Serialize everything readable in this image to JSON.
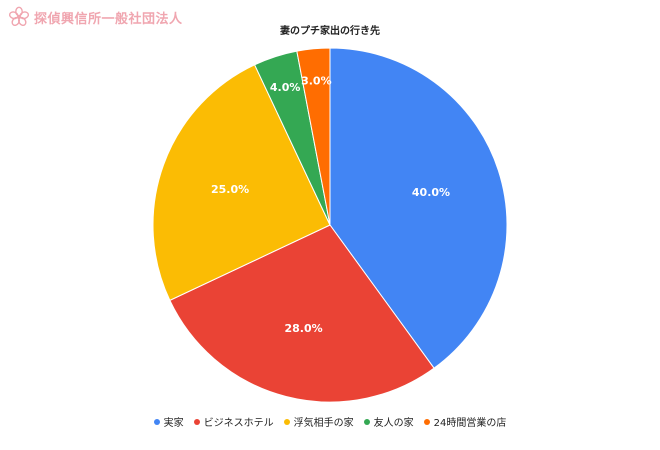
{
  "watermark": {
    "text": "探偵興信所一般社団法人",
    "logo_icon": "sakura-flower-icon",
    "color": "#f0a6b0"
  },
  "chart_data": {
    "type": "pie",
    "title": "妻のプチ家出の行き先",
    "labels": [
      "実家",
      "ビジネスホテル",
      "浮気相手の家",
      "友人の家",
      "24時間営業の店"
    ],
    "values": [
      40.0,
      28.0,
      25.0,
      4.0,
      3.0
    ],
    "value_labels": [
      "40.0%",
      "28.0%",
      "25.0%",
      "4.0%",
      "3.0%"
    ],
    "colors": [
      "#4285f4",
      "#ea4335",
      "#fbbc04",
      "#34a853",
      "#ff6d01"
    ],
    "start_angle": "12 o'clock",
    "direction": "clockwise",
    "legend_position": "bottom"
  }
}
